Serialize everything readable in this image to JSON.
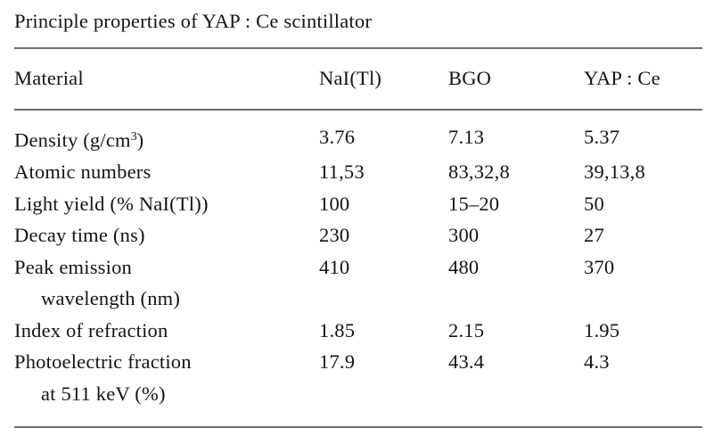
{
  "caption": "Principle properties of YAP : Ce scintillator",
  "table": {
    "columns": [
      "Material",
      "NaI(Tl)",
      "BGO",
      "YAP : Ce"
    ],
    "rows": [
      {
        "label_pre": "Density (g/cm",
        "label_sup": "3",
        "label_post": ")",
        "values": [
          "3.76",
          "7.13",
          "5.37"
        ]
      },
      {
        "label": "Atomic numbers",
        "values": [
          "11,53",
          "83,32,8",
          "39,13,8"
        ]
      },
      {
        "label": "Light yield (% NaI(Tl))",
        "values": [
          "100",
          "15–20",
          "50"
        ]
      },
      {
        "label": "Decay time (ns)",
        "values": [
          "230",
          "300",
          "27"
        ]
      },
      {
        "label": "Peak emission",
        "label2": "wavelength (nm)",
        "values": [
          "410",
          "480",
          "370"
        ]
      },
      {
        "label": "Index of refraction",
        "values": [
          "1.85",
          "2.15",
          "1.95"
        ]
      },
      {
        "label": "Photoelectric fraction",
        "label2": "at 511 keV (%)",
        "values": [
          "17.9",
          "43.4",
          "4.3"
        ]
      }
    ]
  },
  "colors": {
    "background": "#ffffff",
    "text": "#141414",
    "rule": "#6d6d6d"
  }
}
